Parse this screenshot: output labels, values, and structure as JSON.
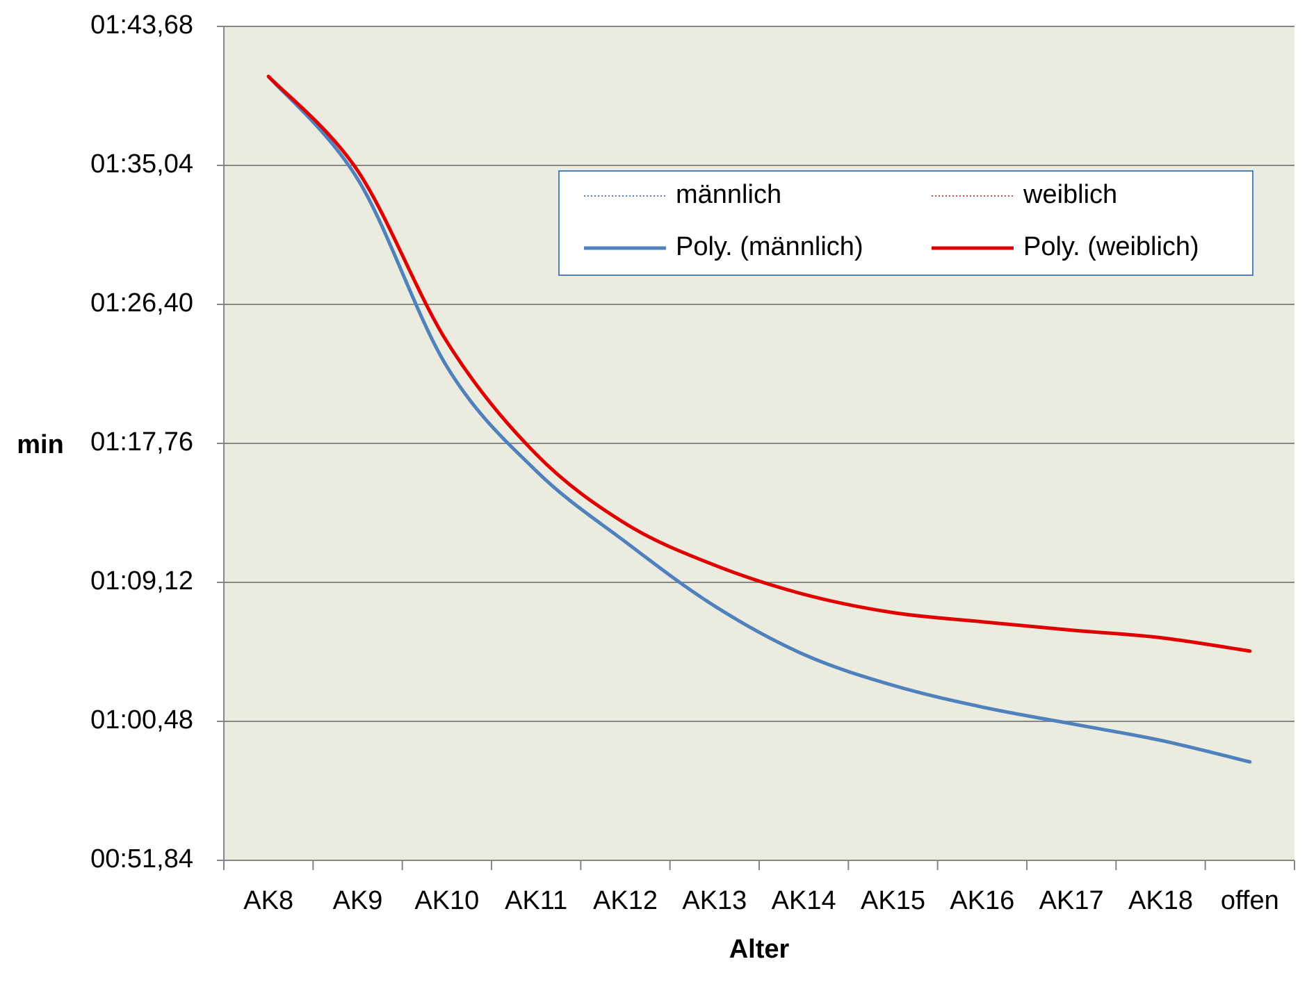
{
  "chart_data": {
    "type": "line",
    "x_label": "Alter",
    "y_label": "min",
    "categories": [
      "AK8",
      "AK9",
      "AK10",
      "AK11",
      "AK12",
      "AK13",
      "AK14",
      "AK15",
      "AK16",
      "AK17",
      "AK18",
      "offen"
    ],
    "series": [
      {
        "name": "männlich",
        "color": "#4f81bd",
        "style": "dotted",
        "values": [
          100.57,
          94.19,
          82.53,
          76.05,
          71.64,
          67.65,
          64.64,
          62.72,
          61.37,
          60.33,
          59.3,
          57.96
        ]
      },
      {
        "name": "weiblich",
        "color": "#c0504d",
        "style": "dotted",
        "values": [
          100.57,
          94.71,
          84.08,
          77.09,
          72.78,
          70.19,
          68.38,
          67.24,
          66.67,
          66.15,
          65.68,
          64.85
        ]
      },
      {
        "name": "Poly. (männlich)",
        "color": "#4f81bd",
        "style": "solid",
        "values": [
          100.57,
          94.19,
          82.53,
          76.05,
          71.64,
          67.65,
          64.64,
          62.72,
          61.37,
          60.33,
          59.3,
          57.96
        ]
      },
      {
        "name": "Poly. (weiblich)",
        "color": "#e00000",
        "style": "solid",
        "values": [
          100.57,
          94.71,
          84.08,
          77.09,
          72.78,
          70.19,
          68.38,
          67.24,
          66.67,
          66.15,
          65.68,
          64.85
        ]
      }
    ],
    "ylim": [
      51.84,
      103.68
    ],
    "yticks": [
      {
        "value": 51.84,
        "label": "00:51,84"
      },
      {
        "value": 60.48,
        "label": "01:00,48"
      },
      {
        "value": 69.12,
        "label": "01:09,12"
      },
      {
        "value": 77.76,
        "label": "01:17,76"
      },
      {
        "value": 86.4,
        "label": "01:26,40"
      },
      {
        "value": 95.04,
        "label": "01:35,04"
      },
      {
        "value": 103.68,
        "label": "01:43,68"
      }
    ],
    "grid": true,
    "legend": "top-right",
    "plot_background": "#ebecdf"
  }
}
